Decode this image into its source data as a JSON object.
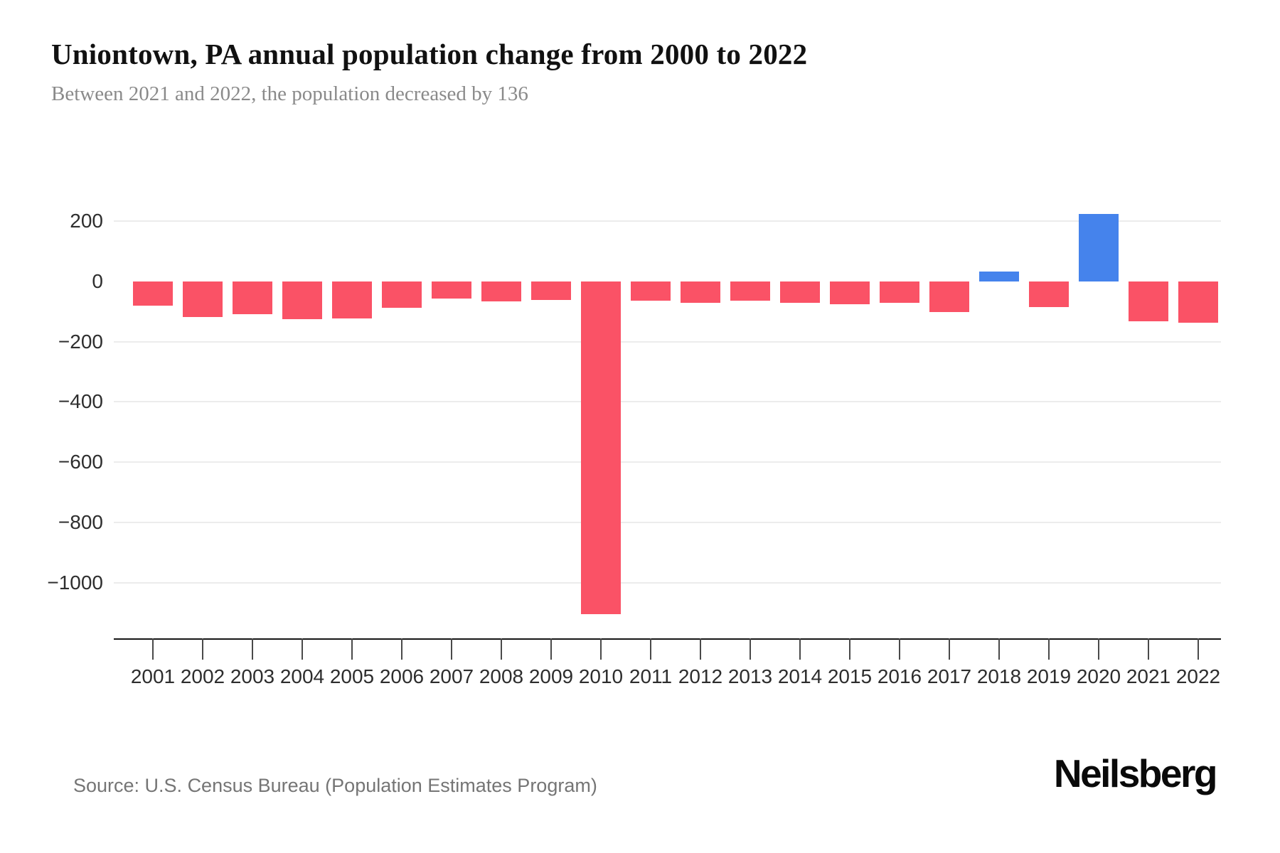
{
  "header": {
    "title": "Uniontown, PA annual population change from 2000 to 2022",
    "subtitle": "Between 2021 and 2022, the population decreased by 136"
  },
  "footer": {
    "source": "Source: U.S. Census Bureau (Population Estimates Program)",
    "brand": "Neilsberg"
  },
  "chart_data": {
    "type": "bar",
    "title": "Uniontown, PA annual population change from 2000 to 2022",
    "xlabel": "",
    "ylabel": "",
    "categories": [
      "2001",
      "2002",
      "2003",
      "2004",
      "2005",
      "2006",
      "2007",
      "2008",
      "2009",
      "2010",
      "2011",
      "2012",
      "2013",
      "2014",
      "2015",
      "2016",
      "2017",
      "2018",
      "2019",
      "2020",
      "2021",
      "2022"
    ],
    "values": [
      -79,
      -117,
      -109,
      -126,
      -122,
      -87,
      -56,
      -66,
      -62,
      -1105,
      -64,
      -70,
      -64,
      -70,
      -75,
      -71,
      -101,
      34,
      -85,
      225,
      -131,
      -136
    ],
    "yticks": [
      {
        "value": 200,
        "label": "200"
      },
      {
        "value": 0,
        "label": "0"
      },
      {
        "value": -200,
        "label": "−200"
      },
      {
        "value": -400,
        "label": "−400"
      },
      {
        "value": -600,
        "label": "−600"
      },
      {
        "value": -800,
        "label": "−800"
      },
      {
        "value": -1000,
        "label": "−1000"
      }
    ],
    "ylim": [
      -1185,
      333
    ],
    "grid": "horizontal light-gray gridlines at labeled ticks, no zero line, no vertical gridlines",
    "legend": "none",
    "colors": {
      "positive": "#4583EC",
      "negative": "#FA5266"
    }
  }
}
